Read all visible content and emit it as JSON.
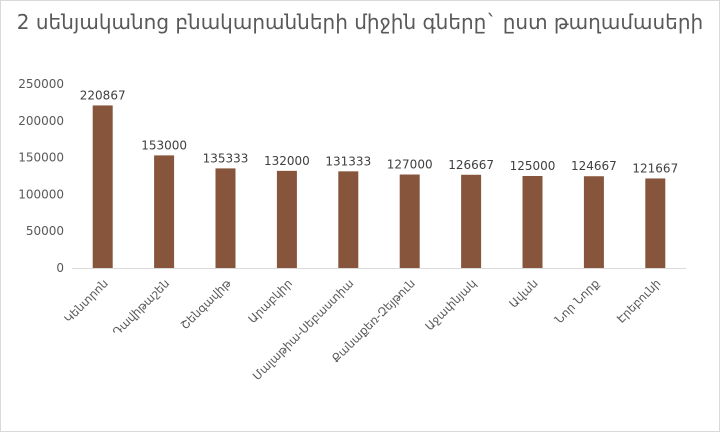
{
  "chart_data": {
    "type": "bar",
    "title": "2 սենյականոց բնակարանների միջին գները` ըստ թաղամասերի",
    "xlabel": "",
    "ylabel": "",
    "categories": [
      "Կենտրոն",
      "Դավիթաշեն",
      "Շենգավիթ",
      "Արաբկիր",
      "Մալաթիա-Սեբաստիա",
      "Քանաքեռ-Զեյթուն",
      "Աջափնյակ",
      "Ավան",
      "Նոր Նորք",
      "Էրեբունի"
    ],
    "values": [
      220867,
      153000,
      135333,
      132000,
      131333,
      127000,
      126667,
      125000,
      124667,
      121667
    ],
    "ylim": [
      0,
      250000
    ],
    "yticks": [
      0,
      50000,
      100000,
      150000,
      200000,
      250000
    ],
    "bar_color": "#86553b",
    "grid": false,
    "legend": "none"
  }
}
